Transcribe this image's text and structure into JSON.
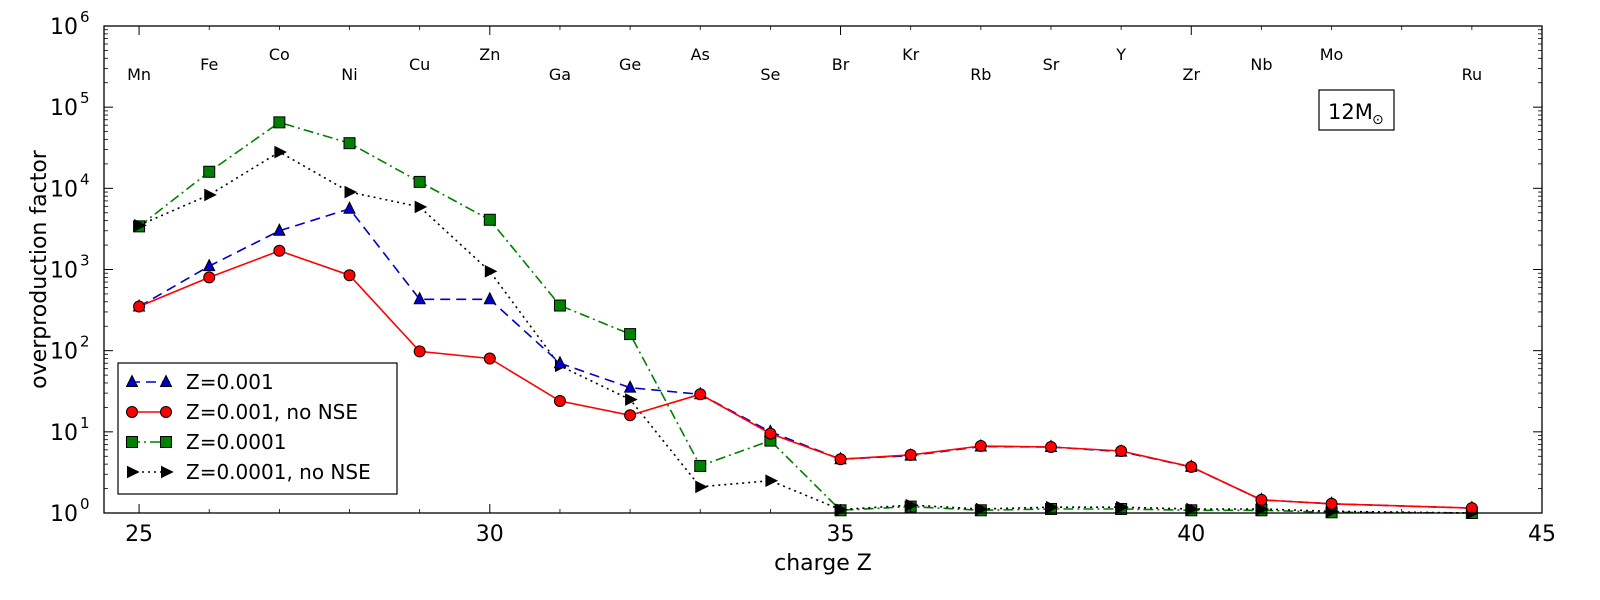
{
  "chart_data": {
    "type": "line",
    "xlabel": "charge Z",
    "ylabel": "overproduction factor",
    "yscale": "log",
    "xlim": [
      24.5,
      45
    ],
    "ylim": [
      1,
      1000000
    ],
    "xticks": [
      25,
      30,
      35,
      40,
      45
    ],
    "yticks": [
      {
        "value": 1,
        "base": "10",
        "exp": "0"
      },
      {
        "value": 10,
        "base": "10",
        "exp": "1"
      },
      {
        "value": 100,
        "base": "10",
        "exp": "2"
      },
      {
        "value": 1000,
        "base": "10",
        "exp": "3"
      },
      {
        "value": 10000,
        "base": "10",
        "exp": "4"
      },
      {
        "value": 100000,
        "base": "10",
        "exp": "5"
      },
      {
        "value": 1000000,
        "base": "10",
        "exp": "6"
      }
    ],
    "annotation": {
      "text": "12M",
      "sub": "⊙"
    },
    "legend_position": "lower-left",
    "element_labels": [
      {
        "z": 25,
        "label": "Mn",
        "row": 2
      },
      {
        "z": 26,
        "label": "Fe",
        "row": 1
      },
      {
        "z": 27,
        "label": "Co",
        "row": 0
      },
      {
        "z": 28,
        "label": "Ni",
        "row": 2
      },
      {
        "z": 29,
        "label": "Cu",
        "row": 1
      },
      {
        "z": 30,
        "label": "Zn",
        "row": 0
      },
      {
        "z": 31,
        "label": "Ga",
        "row": 2
      },
      {
        "z": 32,
        "label": "Ge",
        "row": 1
      },
      {
        "z": 33,
        "label": "As",
        "row": 0
      },
      {
        "z": 34,
        "label": "Se",
        "row": 2
      },
      {
        "z": 35,
        "label": "Br",
        "row": 1
      },
      {
        "z": 36,
        "label": "Kr",
        "row": 0
      },
      {
        "z": 37,
        "label": "Rb",
        "row": 2
      },
      {
        "z": 38,
        "label": "Sr",
        "row": 1
      },
      {
        "z": 39,
        "label": "Y",
        "row": 0
      },
      {
        "z": 40,
        "label": "Zr",
        "row": 2
      },
      {
        "z": 41,
        "label": "Nb",
        "row": 1
      },
      {
        "z": 42,
        "label": "Mo",
        "row": 0
      },
      {
        "z": 44,
        "label": "Ru",
        "row": 2
      }
    ],
    "series": [
      {
        "name": "Z=0.001",
        "color": "#0000cc",
        "dash": "10,6",
        "marker": "triangle-up",
        "x": [
          25,
          26,
          27,
          28,
          29,
          30,
          31,
          32,
          33,
          34,
          35,
          36,
          37,
          38,
          39,
          40,
          41,
          42,
          44
        ],
        "y": [
          350,
          1100,
          3000,
          5600,
          430,
          430,
          70,
          35,
          29,
          10,
          4.6,
          5.1,
          6.6,
          6.5,
          5.7,
          3.7,
          1.45,
          1.3,
          1.15
        ]
      },
      {
        "name": "Z=0.001, no NSE",
        "color": "#ff0000",
        "dash": "",
        "marker": "circle",
        "x": [
          25,
          26,
          27,
          28,
          29,
          30,
          31,
          32,
          33,
          34,
          35,
          36,
          37,
          38,
          39,
          40,
          41,
          42,
          44
        ],
        "y": [
          350,
          800,
          1700,
          850,
          98,
          80,
          24,
          16,
          29,
          9.5,
          4.6,
          5.2,
          6.7,
          6.5,
          5.8,
          3.7,
          1.45,
          1.3,
          1.15
        ]
      },
      {
        "name": "Z=0.0001",
        "color": "#008000",
        "dash": "10,4,2,4",
        "marker": "square",
        "x": [
          25,
          26,
          27,
          28,
          29,
          30,
          31,
          32,
          33,
          34,
          35,
          36,
          37,
          38,
          39,
          40,
          41,
          42,
          44
        ],
        "y": [
          3400,
          16000,
          65000,
          36000,
          12000,
          4100,
          360,
          160,
          3.8,
          7.8,
          1.08,
          1.2,
          1.08,
          1.12,
          1.12,
          1.08,
          1.08,
          1.02,
          1.0
        ]
      },
      {
        "name": "Z=0.0001, no NSE",
        "color": "#000000",
        "dash": "2,4",
        "marker": "triangle-right",
        "x": [
          25,
          26,
          27,
          28,
          29,
          30,
          31,
          32,
          33,
          34,
          35,
          36,
          37,
          38,
          39,
          40,
          41,
          42,
          44
        ],
        "y": [
          3500,
          8300,
          28000,
          9000,
          5900,
          950,
          65,
          25,
          2.1,
          2.5,
          1.1,
          1.25,
          1.12,
          1.18,
          1.18,
          1.12,
          1.12,
          1.05,
          1.0
        ]
      }
    ]
  }
}
